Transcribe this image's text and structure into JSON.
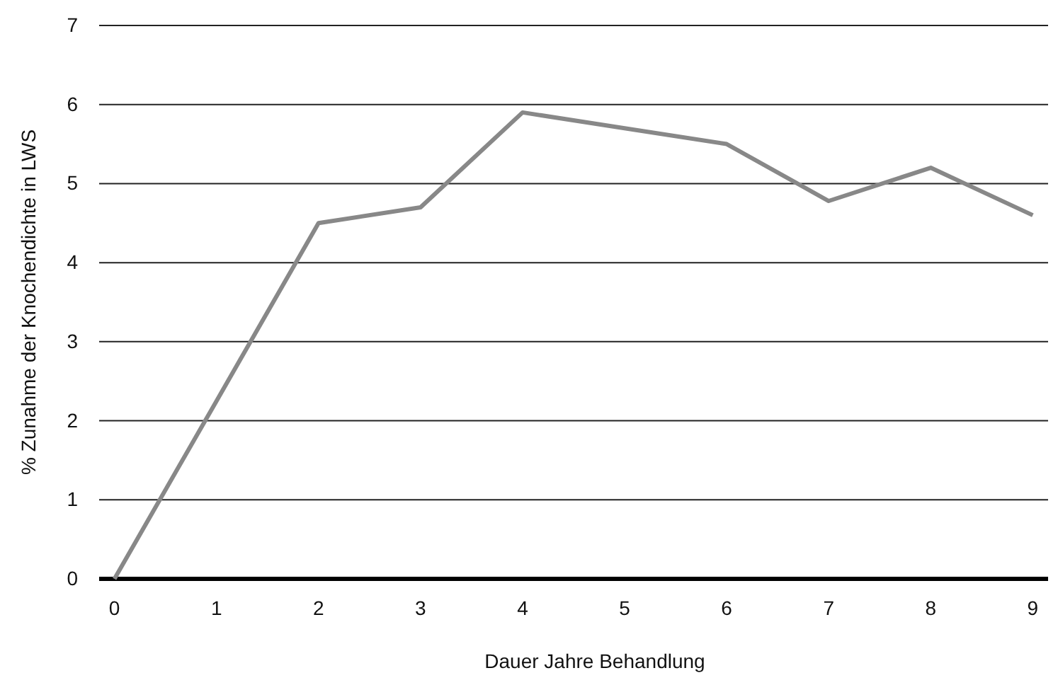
{
  "chart_data": {
    "type": "line",
    "xlabel": "Dauer Jahre Behandlung",
    "ylabel": "% Zunahme der Knochendichte in LWS",
    "categories": [
      "0",
      "1",
      "2",
      "3",
      "4",
      "5",
      "6",
      "7",
      "8",
      "9"
    ],
    "series": [
      {
        "color": "#888888",
        "values": [
          0,
          2.25,
          4.5,
          4.7,
          5.9,
          5.7,
          5.5,
          4.78,
          5.2,
          4.6
        ]
      }
    ],
    "ylim": [
      0,
      7
    ],
    "yticks": [
      0,
      1,
      2,
      3,
      4,
      5,
      6,
      7
    ],
    "grid": "y",
    "marker": "none",
    "line_style": "solid"
  }
}
